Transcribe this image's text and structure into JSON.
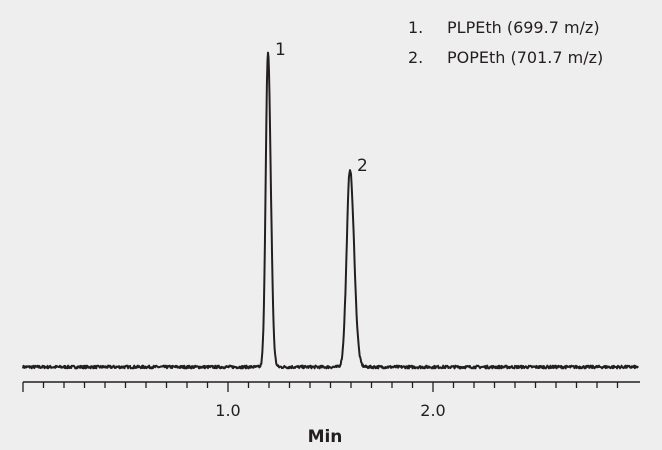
{
  "chart_data": {
    "type": "line",
    "title": "",
    "xlabel": "Min",
    "ylabel": "",
    "xlim": [
      0.0,
      3.0
    ],
    "ylim": [
      0,
      100
    ],
    "x_major_ticks": [
      1.0,
      2.0
    ],
    "x_tick_labels": [
      "1.0",
      "2.0"
    ],
    "x_minor_tick_step": 0.1,
    "y_axis_shown": false,
    "grid": false,
    "legend_position": "top-right",
    "line_color": "#231f20",
    "peaks": [
      {
        "label": "1",
        "retention_time_min": 1.195,
        "relative_height": 100,
        "width_sigma_min": 0.011
      },
      {
        "label": "2",
        "retention_time_min": 1.595,
        "relative_height": 63,
        "width_sigma_min": 0.016
      }
    ],
    "legend": [
      {
        "number": "1.",
        "name": "PLPEth (699.7 m/z)"
      },
      {
        "number": "2.",
        "name": "POPEth (701.7 m/z)"
      }
    ]
  }
}
